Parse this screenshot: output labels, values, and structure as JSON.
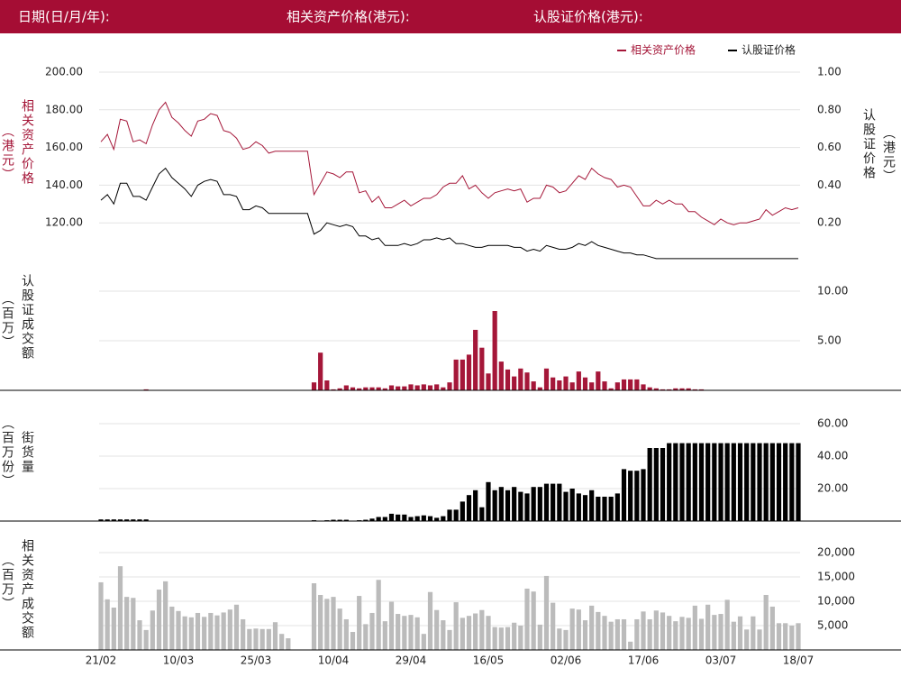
{
  "header": {
    "date_label": "日期(日/月/年):",
    "underlying_label": "相关资产价格(港元):",
    "warrant_label": "认股证价格(港元):"
  },
  "chart_data": [
    {
      "type": "line",
      "y_label": "相关资产价格",
      "y_unit": "（港元）",
      "y2_label": "认股证价格",
      "y2_unit": "（港元）",
      "ylim": [
        100,
        200
      ],
      "yticks": [
        {
          "value": 120,
          "label": "120.00"
        },
        {
          "value": 140,
          "label": "140.00"
        },
        {
          "value": 160,
          "label": "160.00"
        },
        {
          "value": 180,
          "label": "180.00"
        },
        {
          "value": 200,
          "label": "200.00"
        }
      ],
      "y2lim": [
        0,
        1
      ],
      "y2ticks": [
        {
          "value": 0.2,
          "label": "0.20"
        },
        {
          "value": 0.4,
          "label": "0.40"
        },
        {
          "value": 0.6,
          "label": "0.60"
        },
        {
          "value": 0.8,
          "label": "0.80"
        },
        {
          "value": 1,
          "label": "1.00"
        }
      ],
      "grid": true,
      "legend": "top-right",
      "series": [
        {
          "name": "相关资产价格",
          "color": "#a51739",
          "values": [
            163,
            167,
            159,
            175,
            174,
            163,
            164,
            162,
            172,
            180,
            184,
            176,
            173,
            169,
            166,
            174,
            175,
            178,
            177,
            169,
            168,
            165,
            159,
            160,
            163,
            161,
            157,
            158,
            158,
            158,
            158,
            158,
            158,
            135,
            141,
            147,
            146,
            144,
            147,
            147,
            136,
            137,
            131,
            134,
            128,
            128,
            130,
            132,
            129,
            131,
            133,
            133,
            135,
            139,
            141,
            141,
            145,
            138,
            140,
            136,
            133,
            136,
            137,
            138,
            137,
            138,
            131,
            133,
            133,
            140,
            139,
            136,
            137,
            141,
            145,
            143,
            149,
            146,
            144,
            143,
            139,
            140,
            139,
            134,
            129,
            129,
            132,
            130,
            132,
            130,
            130,
            126,
            126,
            123,
            121,
            119,
            122,
            120,
            119,
            120,
            120,
            121,
            122,
            127,
            124,
            126,
            128,
            127,
            128
          ]
        },
        {
          "name": "认股证价格",
          "color": "#000000",
          "axis": "y2",
          "values": [
            0.32,
            0.35,
            0.3,
            0.41,
            0.41,
            0.34,
            0.34,
            0.32,
            0.39,
            0.46,
            0.49,
            0.44,
            0.41,
            0.38,
            0.34,
            0.4,
            0.42,
            0.43,
            0.42,
            0.35,
            0.35,
            0.34,
            0.27,
            0.27,
            0.29,
            0.28,
            0.25,
            0.25,
            0.25,
            0.25,
            0.25,
            0.25,
            0.25,
            0.14,
            0.16,
            0.2,
            0.19,
            0.18,
            0.19,
            0.18,
            0.13,
            0.13,
            0.11,
            0.12,
            0.08,
            0.08,
            0.08,
            0.09,
            0.08,
            0.09,
            0.11,
            0.11,
            0.12,
            0.11,
            0.12,
            0.09,
            0.09,
            0.08,
            0.07,
            0.07,
            0.08,
            0.08,
            0.08,
            0.08,
            0.07,
            0.07,
            0.05,
            0.06,
            0.05,
            0.08,
            0.07,
            0.06,
            0.06,
            0.07,
            0.09,
            0.08,
            0.1,
            0.08,
            0.07,
            0.06,
            0.05,
            0.04,
            0.04,
            0.03,
            0.03,
            0.02,
            0.01,
            0.01,
            0.01,
            0.01,
            0.01,
            0.01,
            0.01,
            0.01,
            0.01,
            0.01,
            0.01,
            0.01,
            0.01,
            0.01,
            0.01,
            0.01,
            0.01,
            0.01,
            0.01,
            0.01,
            0.01,
            0.01,
            0.01
          ]
        }
      ]
    },
    {
      "type": "bar",
      "y_label": "认股证成交额",
      "y_unit": "（百万）",
      "color": "#a51739",
      "ylim": [
        0,
        12
      ],
      "yticks": [
        {
          "value": 5,
          "label": "5.00"
        },
        {
          "value": 10,
          "label": "10.00"
        }
      ],
      "grid": true,
      "values": [
        0,
        0,
        0,
        0,
        0,
        0,
        0,
        0.1,
        0,
        0,
        0,
        0,
        0,
        0,
        0,
        0,
        0,
        0,
        0,
        0,
        0,
        0,
        0,
        0,
        0,
        0,
        0,
        0,
        0,
        0,
        0,
        0,
        0,
        0.8,
        3.8,
        1.0,
        0.1,
        0.2,
        0.5,
        0.3,
        0.2,
        0.3,
        0.3,
        0.3,
        0.2,
        0.5,
        0.4,
        0.4,
        0.6,
        0.5,
        0.6,
        0.5,
        0.6,
        0.3,
        0.8,
        3.1,
        3.1,
        3.6,
        6.1,
        4.3,
        1.7,
        8.0,
        2.9,
        2.1,
        1.4,
        2.2,
        1.8,
        0.9,
        0.3,
        2.2,
        1.3,
        1.0,
        1.4,
        0.8,
        1.9,
        1.3,
        0.8,
        1.9,
        0.9,
        0.2,
        0.8,
        1.1,
        1.1,
        1.1,
        0.6,
        0.3,
        0.2,
        0.1,
        0.1,
        0.2,
        0.2,
        0.2,
        0.1,
        0.1,
        0,
        0,
        0,
        0,
        0,
        0,
        0,
        0,
        0,
        0,
        0,
        0,
        0,
        0,
        0
      ]
    },
    {
      "type": "bar",
      "y_label": "街货量",
      "y_unit": "（百万份）",
      "color": "#000000",
      "ylim": [
        0,
        60
      ],
      "yticks": [
        {
          "value": 20,
          "label": "20.00"
        },
        {
          "value": 40,
          "label": "40.00"
        },
        {
          "value": 60,
          "label": "60.00"
        }
      ],
      "grid": true,
      "values": [
        1,
        1,
        1,
        1,
        1,
        1,
        1,
        1,
        0,
        0,
        0,
        0,
        0,
        0,
        0,
        0,
        0,
        0,
        0,
        0,
        0,
        0,
        0,
        0,
        0,
        0,
        0,
        0,
        0,
        0,
        0,
        0,
        0,
        0.5,
        0,
        0.5,
        0.8,
        0.8,
        0.8,
        0,
        0.5,
        0.8,
        1.5,
        2.5,
        2.5,
        4.5,
        4,
        4,
        2.5,
        3,
        3.5,
        3,
        2,
        3,
        7,
        7,
        12,
        16,
        19,
        8.5,
        24,
        19,
        21,
        19,
        21,
        18,
        17,
        21,
        21,
        23,
        23,
        23,
        18,
        20,
        17,
        16,
        19,
        15,
        15,
        15,
        17,
        32,
        31,
        31,
        32,
        45,
        45,
        45,
        48,
        48,
        48,
        48,
        48,
        48,
        48,
        48,
        48,
        48,
        48,
        48,
        48,
        48,
        48,
        48,
        48,
        48,
        48,
        48,
        48
      ]
    },
    {
      "type": "bar",
      "y_label": "相关资产成交额",
      "y_unit": "（百万）",
      "color": "#bbbbbb",
      "ylim": [
        0,
        20000
      ],
      "yticks": [
        {
          "value": 5000,
          "label": "5,000"
        },
        {
          "value": 10000,
          "label": "10,000"
        },
        {
          "value": 15000,
          "label": "15,000"
        },
        {
          "value": 20000,
          "label": "20,000"
        }
      ],
      "grid": true,
      "categories": [
        "21/02",
        null,
        null,
        null,
        null,
        null,
        null,
        null,
        null,
        null,
        null,
        null,
        "10/03",
        null,
        null,
        null,
        null,
        null,
        null,
        null,
        null,
        null,
        null,
        null,
        "25/03",
        null,
        null,
        null,
        null,
        null,
        null,
        null,
        null,
        null,
        null,
        null,
        "10/04",
        null,
        null,
        null,
        null,
        null,
        null,
        null,
        null,
        null,
        null,
        null,
        "29/04",
        null,
        null,
        null,
        null,
        null,
        null,
        null,
        null,
        null,
        null,
        null,
        "16/05",
        null,
        null,
        null,
        null,
        null,
        null,
        null,
        null,
        null,
        null,
        null,
        "02/06",
        null,
        null,
        null,
        null,
        null,
        null,
        null,
        null,
        null,
        null,
        null,
        "17/06",
        null,
        null,
        null,
        null,
        null,
        null,
        null,
        null,
        null,
        null,
        null,
        "03/07",
        null,
        null,
        null,
        null,
        null,
        null,
        null,
        null,
        null,
        null,
        null,
        "18/07"
      ],
      "values": [
        13900,
        10400,
        8700,
        17200,
        10900,
        10700,
        6100,
        4100,
        8100,
        12400,
        14100,
        8900,
        8000,
        6900,
        6700,
        7600,
        6800,
        7600,
        7100,
        7700,
        8300,
        9300,
        6300,
        4300,
        4400,
        4300,
        4300,
        5700,
        3300,
        2400,
        0,
        0,
        0,
        13700,
        11300,
        10500,
        10900,
        8500,
        6300,
        3700,
        11100,
        5300,
        7600,
        14400,
        5900,
        9900,
        7400,
        7000,
        7200,
        6700,
        3300,
        11900,
        8200,
        6100,
        4100,
        9800,
        6600,
        7000,
        7500,
        8200,
        7000,
        4700,
        4600,
        4700,
        5600,
        5000,
        12600,
        12000,
        5200,
        15200,
        9700,
        4400,
        4100,
        8500,
        8300,
        6100,
        9100,
        7800,
        7000,
        5800,
        6300,
        6300,
        1700,
        6300,
        7900,
        6300,
        8100,
        7700,
        7000,
        5900,
        6800,
        6600,
        9100,
        6400,
        9300,
        7200,
        7400,
        10300,
        5800,
        6900,
        4200,
        6900,
        4200,
        11300,
        8900,
        5500,
        5500,
        5000,
        5500
      ]
    }
  ]
}
